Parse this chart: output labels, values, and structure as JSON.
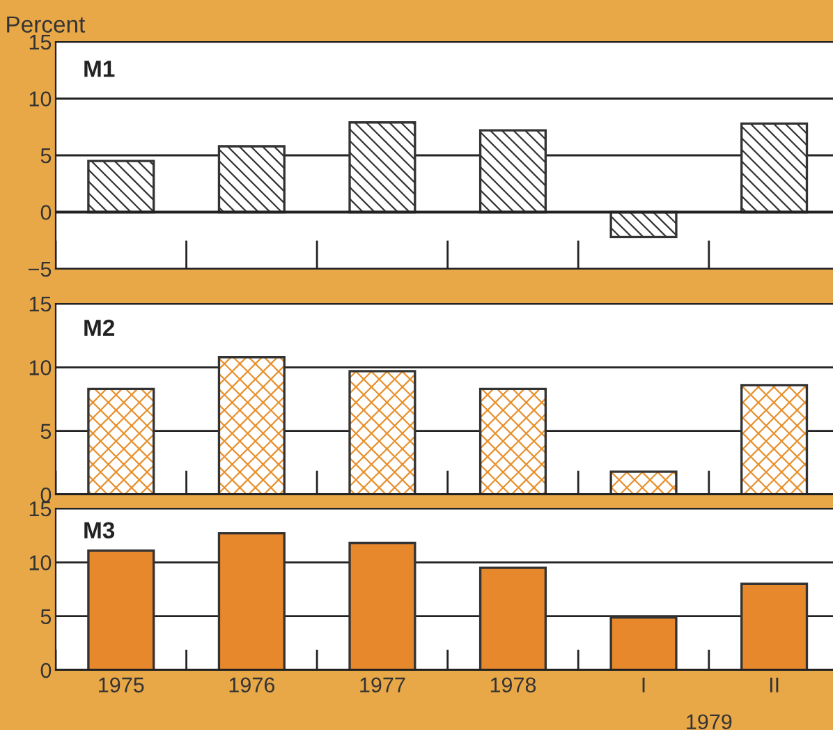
{
  "chart_data": [
    {
      "type": "bar",
      "title": "M1",
      "ylabel": "Percent",
      "categories": [
        null,
        null,
        null,
        null,
        null,
        null
      ],
      "series": [
        {
          "color": "#333333",
          "values": [
            4.5,
            5.8,
            7.9,
            7.2,
            -2.2,
            7.8
          ]
        }
      ],
      "ylim": [
        -5,
        15
      ],
      "yticks": [
        {
          "value": -5,
          "label": "−5"
        },
        0,
        5,
        10,
        15
      ],
      "grid": "y",
      "tick_labels": "y"
    },
    {
      "type": "bar",
      "title": "M2",
      "categories": [
        null,
        null,
        null,
        null,
        null,
        null
      ],
      "series": [
        {
          "color": "#e8902c",
          "values": [
            8.3,
            10.8,
            9.7,
            8.3,
            1.8,
            8.6
          ]
        }
      ],
      "ylim": [
        0,
        15
      ],
      "yticks": [
        0,
        5,
        10,
        15
      ],
      "grid": "y",
      "tick_labels": "y"
    },
    {
      "type": "bar",
      "title": "M3",
      "categories": [
        "1975",
        "1976",
        "1977",
        "1978",
        "I",
        "II"
      ],
      "series": [
        {
          "color": "#e8882c",
          "values": [
            11.1,
            12.7,
            11.8,
            9.5,
            4.9,
            8.0
          ]
        }
      ],
      "ylim": [
        0,
        15
      ],
      "yticks": [
        0,
        5,
        10,
        15
      ],
      "grid": "y",
      "annotations": [
        "1979"
      ]
    }
  ]
}
